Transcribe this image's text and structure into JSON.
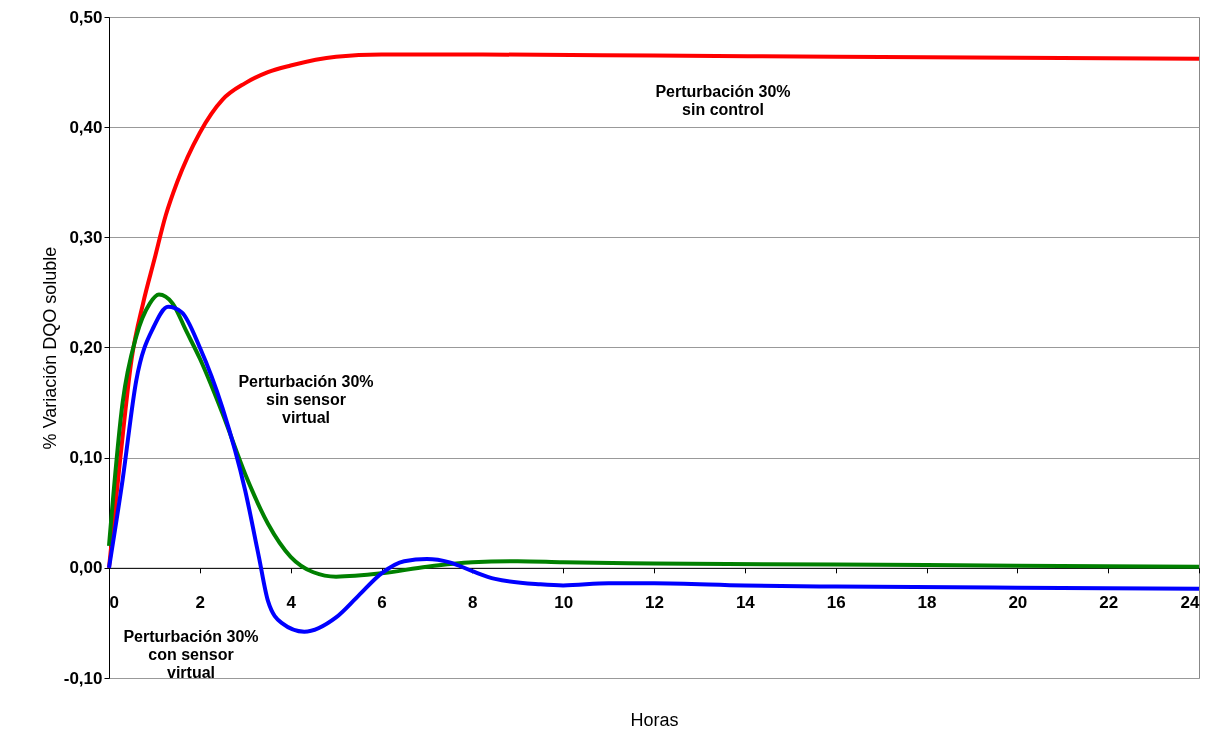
{
  "chart_data": {
    "type": "line",
    "xlabel": "Horas",
    "ylabel": "% Variación DQO soluble",
    "xlim": [
      0,
      24
    ],
    "xticks": [
      0,
      2,
      4,
      6,
      8,
      10,
      12,
      14,
      16,
      18,
      20,
      22,
      24
    ],
    "ylim": [
      -0.1,
      0.5
    ],
    "yticks": [
      {
        "value": -0.1,
        "label": "-0,10"
      },
      {
        "value": 0,
        "label": "0,00"
      },
      {
        "value": 0.1,
        "label": "0,10"
      },
      {
        "value": 0.2,
        "label": "0,20"
      },
      {
        "value": 0.3,
        "label": "0,30"
      },
      {
        "value": 0.4,
        "label": "0,40"
      },
      {
        "value": 0.5,
        "label": "0,50"
      }
    ],
    "grid": "y",
    "marker": "none",
    "line_style": "solid",
    "series": [
      {
        "name": "Perturbación 30%\nsin control",
        "color": "#ff0000",
        "x": [
          0,
          0.25,
          0.5,
          0.75,
          1,
          1.25,
          1.5,
          2,
          2.5,
          3,
          3.5,
          4,
          5,
          6,
          8,
          12,
          16,
          20,
          24
        ],
        "values": [
          0,
          0.1,
          0.19,
          0.24,
          0.28,
          0.32,
          0.35,
          0.395,
          0.425,
          0.44,
          0.45,
          0.456,
          0.464,
          0.466,
          0.466,
          0.465,
          0.464,
          0.463,
          0.462
        ]
      },
      {
        "name": "Perturbación 30%\nsin sensor\nvirtual",
        "color": "#008000",
        "x": [
          0,
          0.3,
          0.6,
          0.9,
          1.1,
          1.4,
          1.7,
          2,
          2.5,
          3,
          3.5,
          4,
          4.5,
          5,
          6,
          7,
          8,
          9,
          10,
          12,
          16,
          20,
          24
        ],
        "values": [
          0.02,
          0.15,
          0.21,
          0.24,
          0.248,
          0.24,
          0.215,
          0.19,
          0.14,
          0.085,
          0.04,
          0.01,
          -0.004,
          -0.008,
          -0.005,
          0.001,
          0.005,
          0.006,
          0.005,
          0.004,
          0.003,
          0.002,
          0.001
        ]
      },
      {
        "name": "Perturbación 30%\ncon sensor\nvirtual",
        "color": "#0000ff",
        "x": [
          0,
          0.3,
          0.6,
          1,
          1.3,
          1.6,
          2,
          2.5,
          3,
          3.3,
          3.5,
          3.8,
          4.3,
          5,
          5.5,
          6,
          6.5,
          7,
          7.5,
          8,
          8.5,
          9.5,
          10,
          11,
          12,
          14,
          16,
          20,
          24
        ],
        "values": [
          0,
          0.08,
          0.17,
          0.22,
          0.237,
          0.232,
          0.2,
          0.145,
          0.07,
          0.01,
          -0.03,
          -0.05,
          -0.058,
          -0.045,
          -0.025,
          -0.005,
          0.006,
          0.008,
          0.005,
          -0.003,
          -0.01,
          -0.015,
          -0.016,
          -0.014,
          -0.014,
          -0.016,
          -0.017,
          -0.018,
          -0.019
        ]
      }
    ]
  }
}
